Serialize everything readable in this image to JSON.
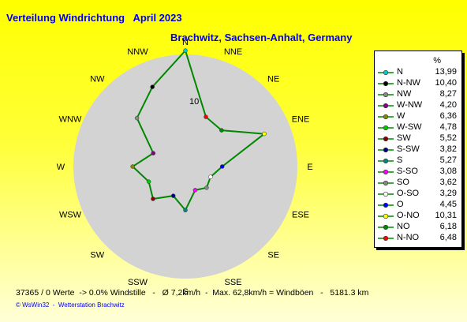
{
  "header": {
    "title": "Verteilung Windrichtung   April 2023",
    "location": "Brachwitz, Sachsen-Anhalt, Germany"
  },
  "footer": {
    "stats": "37365 / 0 Werte  -> 0.0% Windstille   -   Ø 7,2km/h  -  Max. 62,8km/h = Windböen   -   5181.3 km",
    "credit": "© WsWin32  -  Wetterstation Brachwitz"
  },
  "chart_data": {
    "type": "radar",
    "unit": "%",
    "ring_labels": [
      "10"
    ],
    "directions": [
      "N",
      "NNE",
      "NE",
      "ENE",
      "E",
      "ESE",
      "SE",
      "SSE",
      "S",
      "SSW",
      "SW",
      "WSW",
      "W",
      "WNW",
      "NW",
      "NNW"
    ],
    "series": [
      {
        "points": [
          {
            "dir": "N",
            "value": 13.99
          },
          {
            "dir": "NNE",
            "value": 6.48
          },
          {
            "dir": "NE",
            "value": 6.18
          },
          {
            "dir": "ENE",
            "value": 10.31
          },
          {
            "dir": "E",
            "value": 4.45
          },
          {
            "dir": "ESE",
            "value": 3.29
          },
          {
            "dir": "SE",
            "value": 3.62
          },
          {
            "dir": "SSE",
            "value": 3.08
          },
          {
            "dir": "S",
            "value": 5.27
          },
          {
            "dir": "SSW",
            "value": 3.82
          },
          {
            "dir": "SW",
            "value": 5.52
          },
          {
            "dir": "WSW",
            "value": 4.78
          },
          {
            "dir": "W",
            "value": 6.36
          },
          {
            "dir": "WNW",
            "value": 4.2
          },
          {
            "dir": "NW",
            "value": 8.27
          },
          {
            "dir": "NNW",
            "value": 10.4
          }
        ]
      }
    ],
    "legend": [
      {
        "label": "N",
        "value": "13,99",
        "color": "#00cccc"
      },
      {
        "label": "N-NW",
        "value": "10,40",
        "color": "#000000"
      },
      {
        "label": "NW",
        "value": "8,27",
        "color": "#888888"
      },
      {
        "label": "W-NW",
        "value": "4,20",
        "color": "#880088"
      },
      {
        "label": "W",
        "value": "6,36",
        "color": "#888800"
      },
      {
        "label": "W-SW",
        "value": "4,78",
        "color": "#00cc00"
      },
      {
        "label": "SW",
        "value": "5,52",
        "color": "#880000"
      },
      {
        "label": "S-SW",
        "value": "3,82",
        "color": "#000088"
      },
      {
        "label": "S",
        "value": "5,27",
        "color": "#008888"
      },
      {
        "label": "S-SO",
        "value": "3,08",
        "color": "#ff00ff"
      },
      {
        "label": "SO",
        "value": "3,62",
        "color": "#888888"
      },
      {
        "label": "O-SO",
        "value": "3,29",
        "color": "#ffffff"
      },
      {
        "label": "O",
        "value": "4,45",
        "color": "#0000ff"
      },
      {
        "label": "O-NO",
        "value": "10,31",
        "color": "#ffff00"
      },
      {
        "label": "NO",
        "value": "6,18",
        "color": "#008800"
      },
      {
        "label": "N-NO",
        "value": "6,48",
        "color": "#ff0000"
      }
    ],
    "colors": {
      "plot_line": "#008800",
      "disc": "#d3d3d3"
    }
  }
}
